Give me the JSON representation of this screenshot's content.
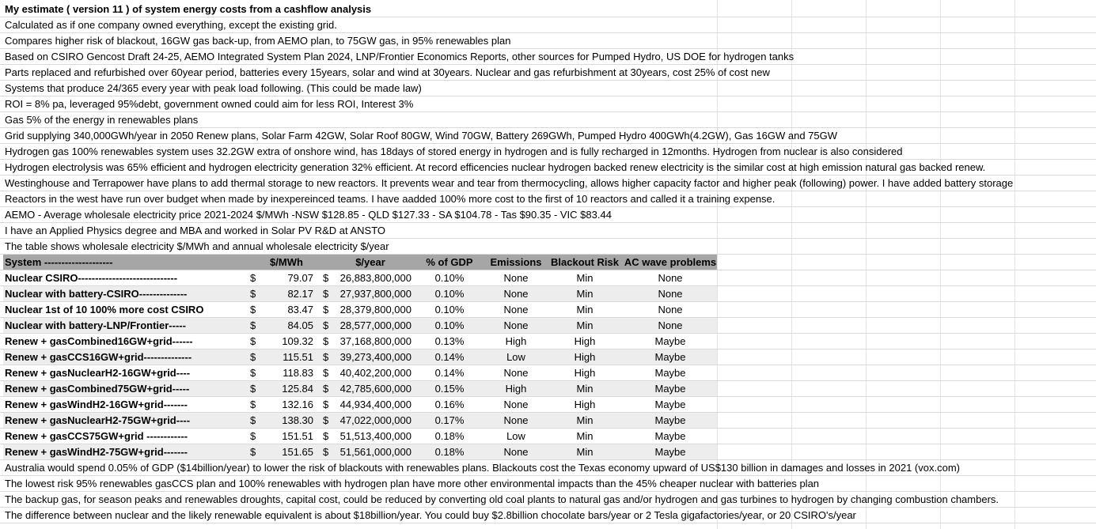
{
  "notes_top": [
    "My estimate ( version 11 ) of system energy costs from a cashflow analysis",
    "Calculated as if one company owned everything, except the existing grid.",
    "Compares higher risk of blackout, 16GW gas back-up, from AEMO plan, to 75GW gas, in 95% renewables plan",
    "Based on CSIRO Gencost Draft 24-25, AEMO Integrated System Plan 2024,  LNP/Frontier Economics Reports, other sources for Pumped Hydro, US DOE for hydrogen tanks",
    "Parts replaced and refurbished over 60year period, batteries every 15years, solar and wind at 30years. Nuclear and gas refurbishment at 30years, cost 25% of cost new",
    "Systems that produce 24/365 every year with peak load following. (This could be made law)",
    "ROI = 8% pa, leveraged 95%debt, government owned could aim for less ROI, Interest 3%",
    "Gas 5% of the energy in  renewables plans",
    "Grid supplying 340,000GWh/year in 2050 Renew plans, Solar Farm 42GW, Solar Roof 80GW, Wind 70GW, Battery 269GWh, Pumped Hydro 400GWh(4.2GW), Gas 16GW and 75GW",
    "Hydrogen gas 100% renewables system uses 32.2GW extra of onshore wind, has 18days of stored energy in hydrogen and is fully recharged in 12months. Hydrogen from nuclear is also considered",
    "Hydrogen electrolysis was 65% efficient and hydrogen electricity generation 32% efficient. At record efficencies nuclear hydrogen backed renew electricity is the similar cost at high emission natural gas backed renew.",
    "Westinghouse and Terrapower have plans to add thermal storage to new reactors. It prevents wear and tear from thermocycling, allows higher capacity factor and higher peak (following) power. I have added battery storage",
    "Reactors in the west have run over budget when made by inexpereinced teams. I have aadded 100% more cost to the first of 10 reactors and called it a training expense.",
    "AEMO - Average wholesale electricity price 2021-2024 $/MWh -NSW $128.85 - QLD $127.33 - SA $104.78 - Tas $90.35 - VIC $83.44",
    "I have an Applied Physics degree and MBA and worked in Solar PV R&D at ANSTO",
    "The table shows wholesale electricity $/MWh and annual wholesale electricity $/year"
  ],
  "table": {
    "headers": {
      "system": "System --------------------",
      "mwh": "$/MWh",
      "year": "$/year",
      "gdp": "% of GDP",
      "emissions": "Emissions",
      "blackout": "Blackout Risk",
      "ac": "AC wave problems"
    },
    "currency": "$",
    "rows": [
      {
        "system": "Nuclear CSIRO-----------------------------",
        "mwh": "79.07",
        "year": "26,883,800,000",
        "gdp": "0.10%",
        "emissions": "None",
        "blackout": "Min",
        "ac": "None"
      },
      {
        "system": "Nuclear with battery-CSIRO--------------",
        "mwh": "82.17",
        "year": "27,937,800,000",
        "gdp": "0.10%",
        "emissions": "None",
        "blackout": "Min",
        "ac": "None"
      },
      {
        "system": "Nuclear 1st of 10 100% more cost CSIRO",
        "mwh": "83.47",
        "year": "28,379,800,000",
        "gdp": "0.10%",
        "emissions": "None",
        "blackout": "Min",
        "ac": "None"
      },
      {
        "system": "Nuclear with battery-LNP/Frontier-----",
        "mwh": "84.05",
        "year": "28,577,000,000",
        "gdp": "0.10%",
        "emissions": "None",
        "blackout": "Min",
        "ac": "None"
      },
      {
        "system": "Renew + gasCombined16GW+grid------",
        "mwh": "109.32",
        "year": "37,168,800,000",
        "gdp": "0.13%",
        "emissions": "High",
        "blackout": "High",
        "ac": "Maybe"
      },
      {
        "system": "Renew + gasCCS16GW+grid--------------",
        "mwh": "115.51",
        "year": "39,273,400,000",
        "gdp": "0.14%",
        "emissions": "Low",
        "blackout": "High",
        "ac": "Maybe"
      },
      {
        "system": "Renew + gasNuclearH2-16GW+grid----",
        "mwh": "118.83",
        "year": "40,402,200,000",
        "gdp": "0.14%",
        "emissions": "None",
        "blackout": "High",
        "ac": "Maybe"
      },
      {
        "system": "Renew + gasCombined75GW+grid-----",
        "mwh": "125.84",
        "year": "42,785,600,000",
        "gdp": "0.15%",
        "emissions": "High",
        "blackout": "Min",
        "ac": "Maybe"
      },
      {
        "system": "Renew + gasWindH2-16GW+grid-------",
        "mwh": "132.16",
        "year": "44,934,400,000",
        "gdp": "0.16%",
        "emissions": "None",
        "blackout": "High",
        "ac": "Maybe"
      },
      {
        "system": "Renew + gasNuclearH2-75GW+grid----",
        "mwh": "138.30",
        "year": "47,022,000,000",
        "gdp": "0.17%",
        "emissions": "None",
        "blackout": "Min",
        "ac": "Maybe"
      },
      {
        "system": "Renew + gasCCS75GW+grid ------------",
        "mwh": "151.51",
        "year": "51,513,400,000",
        "gdp": "0.18%",
        "emissions": "Low",
        "blackout": "Min",
        "ac": "Maybe"
      },
      {
        "system": "Renew + gasWindH2-75GW+grid-------",
        "mwh": "151.65",
        "year": "51,561,000,000",
        "gdp": "0.18%",
        "emissions": "None",
        "blackout": "Min",
        "ac": "Maybe"
      }
    ]
  },
  "notes_bottom": [
    "Australia would spend 0.05% of GDP ($14billion/year) to lower the risk of blackouts with renewables plans. Blackouts cost the Texas economy upward of US$130 billion in damages and losses in 2021 (vox.com)",
    "The lowest risk 95% renewables gasCCS plan and 100% renewables with hydrogen plan have more other environmental impacts than the 45% cheaper nuclear with batteries plan",
    "The backup gas, for season peaks and renewables droughts, capital cost, could be reduced by converting old coal plants to natural gas and/or hydrogen and gas turbines to hydrogen by changing combustion chambers.",
    "The difference between nuclear and the likely renewable equivalent is about $18billion/year. You could buy $2.8billion chocolate bars/year or 2 Tesla gigafactories/year, or 20 CSIRO's/year"
  ]
}
